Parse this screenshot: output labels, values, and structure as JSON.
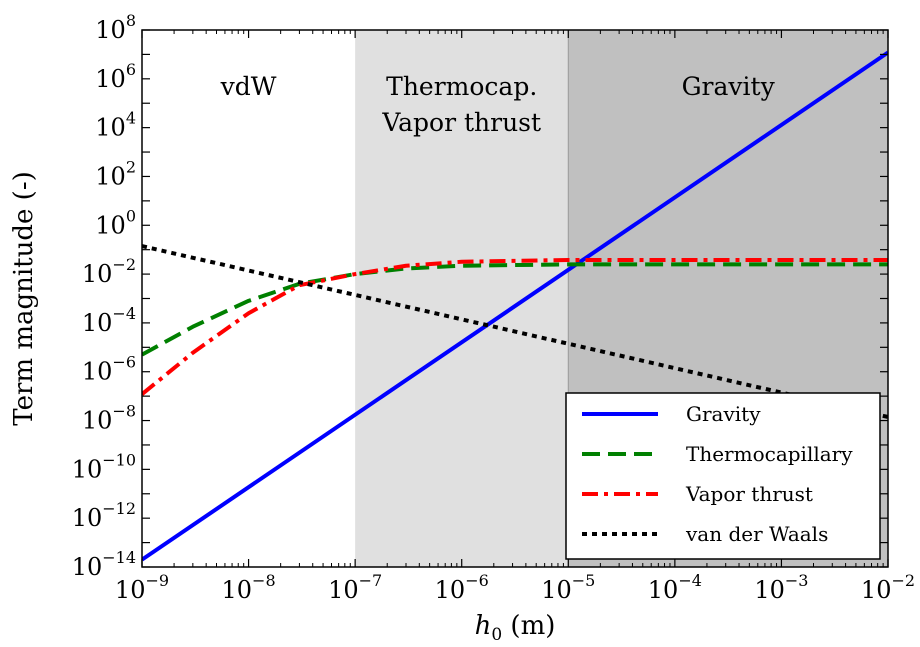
{
  "chart_data": {
    "type": "line",
    "title": "",
    "xlabel": {
      "base": "h",
      "sub": "0",
      "unit": " (m)"
    },
    "ylabel": "Term magnitude (-)",
    "xscale": "log",
    "yscale": "log",
    "xlim": [
      1e-09,
      0.01
    ],
    "ylim": [
      1e-14,
      100000000.0
    ],
    "grid": false,
    "legend_position": "bottom-right",
    "x_ticks": [
      {
        "value": 1e-09,
        "base": "10",
        "exp": "−9"
      },
      {
        "value": 1e-08,
        "base": "10",
        "exp": "−8"
      },
      {
        "value": 1e-07,
        "base": "10",
        "exp": "−7"
      },
      {
        "value": 1e-06,
        "base": "10",
        "exp": "−6"
      },
      {
        "value": 1e-05,
        "base": "10",
        "exp": "−5"
      },
      {
        "value": 0.0001,
        "base": "10",
        "exp": "−4"
      },
      {
        "value": 0.001,
        "base": "10",
        "exp": "−3"
      },
      {
        "value": 0.01,
        "base": "10",
        "exp": "−2"
      }
    ],
    "y_ticks": [
      {
        "value": 1e-14,
        "base": "10",
        "exp": "−14"
      },
      {
        "value": 1e-12,
        "base": "10",
        "exp": "−12"
      },
      {
        "value": 1e-10,
        "base": "10",
        "exp": "−10"
      },
      {
        "value": 1e-08,
        "base": "10",
        "exp": "−8"
      },
      {
        "value": 1e-06,
        "base": "10",
        "exp": "−6"
      },
      {
        "value": 0.0001,
        "base": "10",
        "exp": "−4"
      },
      {
        "value": 0.01,
        "base": "10",
        "exp": "−2"
      },
      {
        "value": 1.0,
        "base": "10",
        "exp": "0"
      },
      {
        "value": 100.0,
        "base": "10",
        "exp": "2"
      },
      {
        "value": 10000.0,
        "base": "10",
        "exp": "4"
      },
      {
        "value": 1000000.0,
        "base": "10",
        "exp": "6"
      },
      {
        "value": 100000000.0,
        "base": "10",
        "exp": "8"
      }
    ],
    "regions": [
      {
        "lines": [
          "vdW"
        ],
        "x_range": [
          1e-09,
          1e-07
        ],
        "color": "#ffffff"
      },
      {
        "lines": [
          "Thermocap.",
          "Vapor thrust"
        ],
        "x_range": [
          1e-07,
          1e-05
        ],
        "color": "#e0e0e0"
      },
      {
        "lines": [
          "Gravity"
        ],
        "x_range": [
          1e-05,
          0.01
        ],
        "color": "#c0c0c0"
      }
    ],
    "series": [
      {
        "name": "Gravity",
        "color": "#0000ff",
        "style": "solid",
        "x": [
          1e-09,
          0.01
        ],
        "y": [
          2e-14,
          12000000.0
        ]
      },
      {
        "name": "Thermocapillary",
        "color": "#008000",
        "style": "dashed",
        "x": [
          1e-09,
          3e-09,
          1e-08,
          3e-08,
          1e-07,
          3e-07,
          1e-06,
          1e-05,
          0.0001,
          0.001,
          0.01
        ],
        "y": [
          5e-06,
          7e-05,
          0.0008,
          0.004,
          0.01,
          0.017,
          0.022,
          0.025,
          0.025,
          0.025,
          0.025
        ]
      },
      {
        "name": "Vapor thrust",
        "color": "#ff0000",
        "style": "dashdot",
        "x": [
          1e-09,
          3e-09,
          1e-08,
          3e-08,
          1e-07,
          3e-07,
          1e-06,
          1e-05,
          0.0001,
          0.001,
          0.01
        ],
        "y": [
          1.2e-07,
          6e-06,
          0.00025,
          0.0035,
          0.01,
          0.022,
          0.032,
          0.038,
          0.038,
          0.038,
          0.038
        ]
      },
      {
        "name": "van der Waals",
        "color": "#000000",
        "style": "dotted",
        "x": [
          1e-09,
          0.01
        ],
        "y": [
          0.14,
          1.4e-08
        ]
      }
    ]
  }
}
